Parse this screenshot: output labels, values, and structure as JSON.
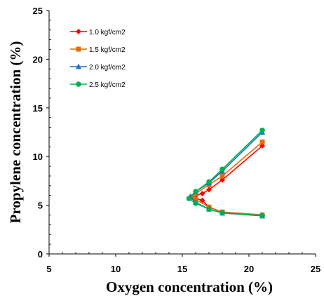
{
  "chart_data": {
    "type": "line",
    "title": "",
    "xlabel": "Oxygen concentration (%)",
    "ylabel": "Propylene concentration (%)",
    "xlim": [
      5,
      25
    ],
    "ylim": [
      0,
      25
    ],
    "xticks": [
      5,
      10,
      15,
      20,
      25
    ],
    "yticks": [
      0,
      5,
      10,
      15,
      20,
      25
    ],
    "grid": false,
    "legend_position": "top-left",
    "series": [
      {
        "name": "1.0 kgf/cm2",
        "color": "#ff0000",
        "marker": "diamond",
        "x": [
          21.0,
          18.0,
          17.0,
          16.5,
          16.0,
          15.8,
          16.0,
          16.5,
          17.0,
          18.0,
          21.0
        ],
        "y": [
          4.0,
          4.3,
          4.8,
          5.5,
          5.7,
          5.8,
          6.0,
          6.2,
          6.6,
          7.6,
          11.1
        ]
      },
      {
        "name": "1.5 kgf/cm2",
        "color": "#e36c09",
        "marker": "square",
        "x": [
          21.0,
          18.0,
          17.0,
          16.0,
          15.8,
          16.0,
          17.0,
          18.0,
          21.0
        ],
        "y": [
          4.0,
          4.3,
          4.8,
          5.6,
          5.8,
          6.2,
          7.1,
          8.0,
          11.5
        ]
      },
      {
        "name": "2.0 kgf/cm2",
        "color": "#1f6fc5",
        "marker": "triangle",
        "x": [
          21.0,
          18.0,
          17.0,
          16.0,
          15.6,
          16.0,
          17.0,
          18.0,
          21.0
        ],
        "y": [
          3.9,
          4.2,
          4.6,
          5.3,
          5.9,
          6.4,
          7.3,
          8.5,
          12.5
        ]
      },
      {
        "name": "2.5 kgf/cm2",
        "color": "#00b050",
        "marker": "circle",
        "x": [
          21.0,
          18.0,
          17.0,
          16.0,
          15.5,
          16.0,
          17.0,
          18.0,
          21.0
        ],
        "y": [
          3.95,
          4.2,
          4.6,
          5.2,
          5.7,
          6.4,
          7.4,
          8.7,
          12.7
        ]
      }
    ]
  }
}
